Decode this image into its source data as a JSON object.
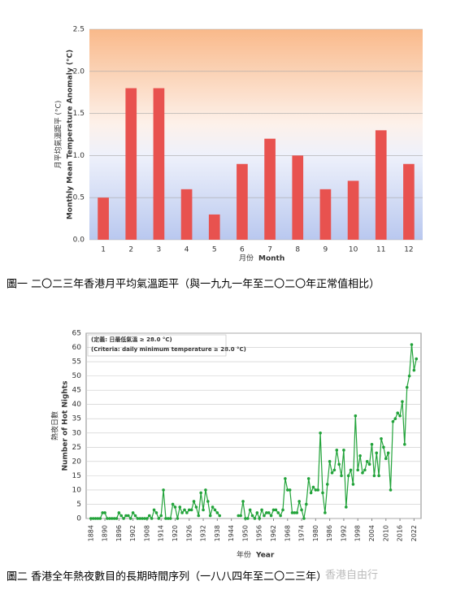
{
  "chart_data": [
    {
      "type": "bar",
      "caption": "圖一  二〇二三年香港月平均氣溫距平（與一九九一年至二〇二〇年正常值相比）",
      "ylabel": [
        "月平均氣溫距平 (°C)",
        "Monthly Mean Temperature Anomaly (°C)"
      ],
      "xlabel": [
        "月份",
        "Month"
      ],
      "categories": [
        "1",
        "2",
        "3",
        "4",
        "5",
        "6",
        "7",
        "8",
        "9",
        "10",
        "11",
        "12"
      ],
      "values": [
        0.5,
        1.8,
        1.8,
        0.6,
        0.3,
        0.9,
        1.2,
        1.0,
        0.6,
        0.7,
        1.3,
        0.9
      ],
      "color": "#e8524f",
      "ylim": [
        0,
        2.5
      ],
      "yticks": [
        {
          "value": 0,
          "label": "0.0"
        },
        0.5,
        {
          "value": 1,
          "label": "1.0"
        },
        1.5,
        {
          "value": 2,
          "label": "2.0"
        },
        2.5
      ],
      "grid": true
    },
    {
      "type": "line",
      "caption": "圖二  香港全年熱夜數目的長期時間序列（一八八四年至二〇二三年）",
      "ylabel": [
        "熱夜日數",
        "Number of Hot Nights"
      ],
      "xlabel": [
        "年份",
        "Year"
      ],
      "annotations": [
        "(定義: 日最低氣溫 ≥ 28.0 °C)",
        "(Criteria: daily minimum temperature ≥ 28.0 °C)"
      ],
      "color": "#22a33a",
      "x": [
        1884,
        1885,
        1886,
        1887,
        1888,
        1889,
        1890,
        1891,
        1892,
        1893,
        1894,
        1895,
        1896,
        1897,
        1898,
        1899,
        1900,
        1901,
        1902,
        1903,
        1904,
        1905,
        1906,
        1907,
        1908,
        1909,
        1910,
        1911,
        1912,
        1913,
        1914,
        1915,
        1916,
        1917,
        1918,
        1919,
        1920,
        1921,
        1922,
        1923,
        1924,
        1925,
        1926,
        1927,
        1928,
        1929,
        1930,
        1931,
        1932,
        1933,
        1934,
        1935,
        1936,
        1937,
        1938,
        1939,
        1940,
        1941,
        1942,
        1943,
        1944,
        1945,
        1946,
        1947,
        1948,
        1949,
        1950,
        1951,
        1952,
        1953,
        1954,
        1955,
        1956,
        1957,
        1958,
        1959,
        1960,
        1961,
        1962,
        1963,
        1964,
        1965,
        1966,
        1967,
        1968,
        1969,
        1970,
        1971,
        1972,
        1973,
        1974,
        1975,
        1976,
        1977,
        1978,
        1979,
        1980,
        1981,
        1982,
        1983,
        1984,
        1985,
        1986,
        1987,
        1988,
        1989,
        1990,
        1991,
        1992,
        1993,
        1994,
        1995,
        1996,
        1997,
        1998,
        1999,
        2000,
        2001,
        2002,
        2003,
        2004,
        2005,
        2006,
        2007,
        2008,
        2009,
        2010,
        2011,
        2012,
        2013,
        2014,
        2015,
        2016,
        2017,
        2018,
        2019,
        2020,
        2021,
        2022,
        2023
      ],
      "values": [
        0,
        0,
        0,
        0,
        0,
        2,
        2,
        0,
        0,
        0,
        0,
        0,
        2,
        1,
        0,
        1,
        1,
        0,
        2,
        1,
        0,
        0,
        0,
        0,
        0,
        1,
        0,
        3,
        2,
        0,
        1,
        10,
        0,
        0,
        0,
        5,
        4,
        0,
        4,
        2,
        3,
        2,
        3,
        3,
        6,
        4,
        1,
        9,
        3,
        10,
        6,
        1,
        4,
        3,
        2,
        1,
        null,
        null,
        null,
        null,
        null,
        null,
        null,
        1,
        1,
        6,
        0,
        0,
        3,
        1,
        0,
        2,
        0,
        3,
        1,
        2,
        2,
        1,
        3,
        3,
        2,
        1,
        3,
        14,
        10,
        10,
        2,
        2,
        2,
        6,
        3,
        0,
        5,
        14,
        9,
        11,
        10,
        10,
        30,
        9,
        2,
        12,
        20,
        16,
        17,
        24,
        19,
        15,
        24,
        4,
        15,
        17,
        12,
        36,
        17,
        22,
        16,
        17,
        20,
        19,
        26,
        15,
        23,
        15,
        28,
        25,
        21,
        23,
        10,
        34,
        35,
        37,
        36,
        41,
        26,
        46,
        50,
        61,
        52,
        56
      ],
      "xlim": [
        1882,
        2025
      ],
      "xticks": [
        1884,
        1890,
        1896,
        1902,
        1908,
        1914,
        1920,
        1926,
        1932,
        1938,
        1944,
        1950,
        1956,
        1962,
        1968,
        1974,
        1980,
        1986,
        1992,
        1998,
        2004,
        2010,
        2016,
        2022
      ],
      "ylim": [
        0,
        65
      ],
      "yticks": [
        0,
        5,
        10,
        15,
        20,
        25,
        30,
        35,
        40,
        45,
        50,
        55,
        60,
        65
      ],
      "grid": true
    }
  ],
  "watermark": "香港自由行"
}
